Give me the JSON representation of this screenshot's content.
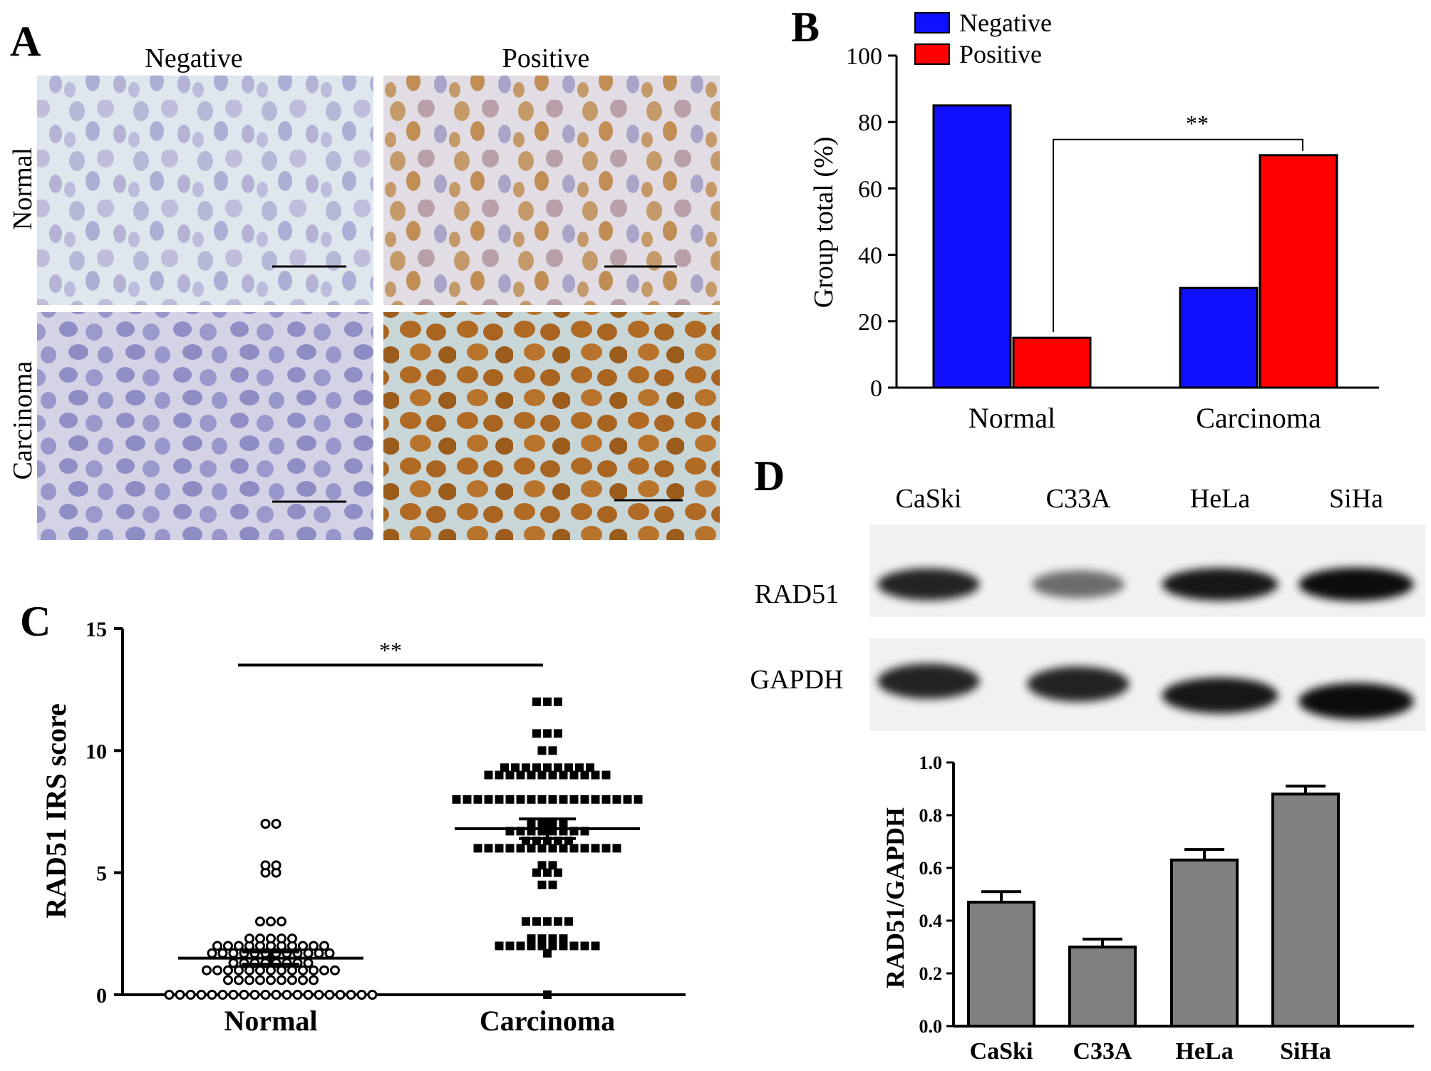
{
  "panels": {
    "A": {
      "letter": "A",
      "col_labels": [
        "Negative",
        "Positive"
      ],
      "row_labels": [
        "Normal",
        "Carcinoma"
      ]
    },
    "B": {
      "letter": "B"
    },
    "C": {
      "letter": "C"
    },
    "D": {
      "letter": "D",
      "lane_labels": [
        "CaSki",
        "C33A",
        "HeLa",
        "SiHa"
      ],
      "band_labels": [
        "RAD51",
        "GAPDH"
      ],
      "rad51_intensity": [
        0.85,
        0.55,
        0.9,
        0.95
      ],
      "gapdh_intensity": [
        0.85,
        0.85,
        0.9,
        0.95
      ]
    }
  },
  "colors": {
    "negative": "#1010ff",
    "positive": "#ff0000",
    "gray_bar": "#808080"
  },
  "chart_data": [
    {
      "panel": "B",
      "type": "bar",
      "categories": [
        "Normal",
        "Carcinoma"
      ],
      "series": [
        {
          "name": "Negative",
          "values": [
            85,
            30
          ]
        },
        {
          "name": "Positive",
          "values": [
            15,
            70
          ]
        }
      ],
      "ylabel": "Group total (%)",
      "ylim": [
        0,
        100
      ],
      "yticks": [
        "0",
        "20",
        "40",
        "60",
        "80",
        "100"
      ],
      "legend": "top-left",
      "annotation": "**"
    },
    {
      "panel": "C",
      "type": "scatter",
      "categories": [
        "Normal",
        "Carcinoma"
      ],
      "ylabel": "RAD51 IRS score",
      "ylim": [
        0,
        15
      ],
      "yticks": [
        "0",
        "5",
        "10",
        "15"
      ],
      "annotation": "**",
      "series": [
        {
          "group": "Normal",
          "marker": "open-circle",
          "mean": 1.5,
          "sem": 0.25,
          "values": [
            0,
            0,
            0,
            0,
            0,
            0,
            0,
            0,
            0,
            0,
            0,
            0,
            0,
            0,
            0,
            0,
            0,
            0,
            0,
            0,
            0.6,
            0.6,
            0.6,
            0.6,
            0.6,
            0.6,
            0.6,
            0.6,
            0.6,
            1,
            1,
            1,
            1,
            1,
            1,
            1,
            1,
            1,
            1,
            1,
            1,
            1,
            1.3,
            1.3,
            1.3,
            1.3,
            1.3,
            1.3,
            1.3,
            1.3,
            1.7,
            1.7,
            1.7,
            1.7,
            1.7,
            1.7,
            1.7,
            1.7,
            1.7,
            1.7,
            1.7,
            1.7,
            2,
            2,
            2,
            2,
            2,
            2,
            2,
            2,
            2,
            2,
            2,
            2.3,
            2.3,
            2.3,
            2.3,
            2.3,
            3,
            3,
            3,
            5,
            5,
            5.3,
            5.3,
            7,
            7
          ]
        },
        {
          "group": "Carcinoma",
          "marker": "filled-square",
          "mean": 6.8,
          "sem": 0.4,
          "values": [
            0,
            1.7,
            2,
            2,
            2,
            2,
            2,
            2,
            2,
            2,
            2,
            2,
            2.3,
            2.3,
            2.3,
            2.3,
            3,
            3,
            3,
            3,
            3,
            4.5,
            4.5,
            5,
            5,
            5,
            5.3,
            5.3,
            6,
            6,
            6,
            6,
            6,
            6,
            6,
            6,
            6,
            6,
            6,
            6,
            6,
            6,
            6.3,
            6.3,
            6.3,
            6.3,
            6.3,
            6.7,
            6.7,
            6.7,
            6.7,
            6.7,
            6.7,
            6.7,
            6.7,
            7,
            7,
            7,
            7,
            8,
            8,
            8,
            8,
            8,
            8,
            8,
            8,
            8,
            8,
            8,
            8,
            8,
            8,
            8,
            8,
            8,
            8,
            9,
            9,
            9,
            9,
            9,
            9,
            9,
            9,
            9,
            9,
            9,
            9,
            9.3,
            9.3,
            9.3,
            9.3,
            9.3,
            9.3,
            9.3,
            9.3,
            9.3,
            10,
            10,
            10.7,
            10.7,
            10.7,
            12,
            12,
            12
          ]
        }
      ]
    },
    {
      "panel": "D",
      "type": "bar",
      "categories": [
        "CaSki",
        "C33A",
        "HeLa",
        "SiHa"
      ],
      "values": [
        0.47,
        0.3,
        0.63,
        0.88
      ],
      "errors": [
        0.04,
        0.03,
        0.04,
        0.03
      ],
      "ylabel": "RAD51/GAPDH",
      "ylim": [
        0,
        1.0
      ],
      "yticks": [
        "0.0",
        "0.2",
        "0.4",
        "0.6",
        "0.8",
        "1.0"
      ]
    }
  ]
}
